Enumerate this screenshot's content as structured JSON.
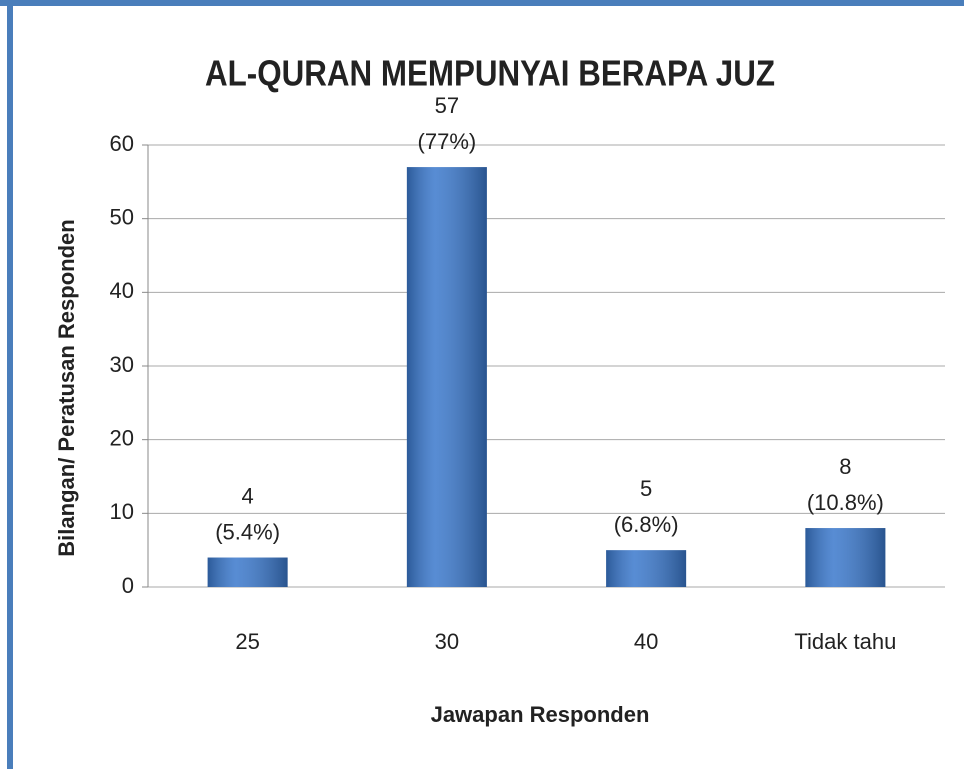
{
  "chart_data": {
    "type": "bar",
    "title": "AL-QURAN MEMPUNYAI BERAPA JUZ",
    "x_label": "Jawapan Responden",
    "y_label": "Bilangan/ Peratusan Responden",
    "categories": [
      "25",
      "30",
      "40",
      "Tidak tahu"
    ],
    "values": [
      4,
      57,
      5,
      8
    ],
    "shares": {
      "values": [
        5.4,
        77,
        6.8,
        10.8
      ],
      "value_labels": [
        "(5.4%)",
        "(77%)",
        "(6.8%)",
        "(10.8%)"
      ]
    },
    "color": "#3a78cc",
    "ylim": [
      0,
      60
    ],
    "yticks": [
      0,
      10,
      20,
      30,
      40,
      50,
      60
    ],
    "grid": true
  }
}
